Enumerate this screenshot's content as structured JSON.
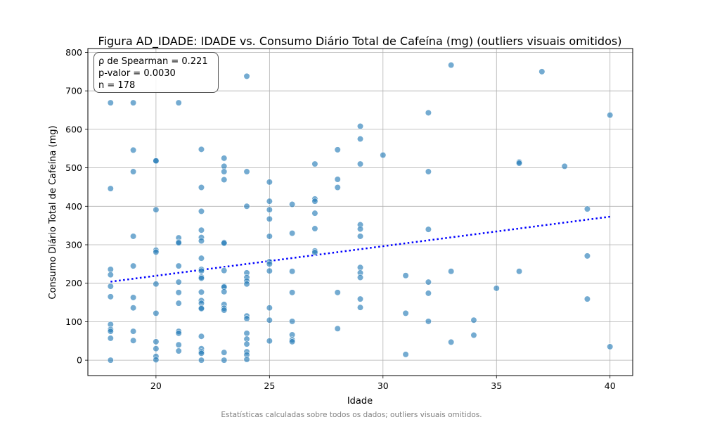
{
  "chart_data": {
    "type": "scatter",
    "title": "Figura AD_IDADE: IDADE vs. Consumo Diário Total de Cafeína (mg) (outliers visuais omitidos)",
    "xlabel": "Idade",
    "ylabel": "Consumo Diário Total de Cafeína (mg)",
    "xlim": [
      17,
      41
    ],
    "ylim": [
      -40,
      810
    ],
    "xticks": [
      20,
      25,
      30,
      35,
      40
    ],
    "yticks": [
      0,
      100,
      200,
      300,
      400,
      500,
      600,
      700,
      800
    ],
    "grid": true,
    "point_color": "#1f77b4",
    "trend_color": "#0000ff",
    "trend_line": {
      "x": [
        18,
        40
      ],
      "y": [
        204,
        373
      ]
    },
    "annotation": {
      "spearman": "ρ de Spearman = 0.221",
      "pvalue": "p-valor = 0.0030",
      "n": "n = 178"
    },
    "footnote": "Estatísticas calculadas sobre todos os dados; outliers visuais omitidos.",
    "points": [
      [
        18,
        669
      ],
      [
        18,
        446
      ],
      [
        18,
        236
      ],
      [
        18,
        222
      ],
      [
        18,
        192
      ],
      [
        18,
        165
      ],
      [
        18,
        93
      ],
      [
        18,
        80
      ],
      [
        18,
        75
      ],
      [
        18,
        57
      ],
      [
        18,
        0
      ],
      [
        19,
        669
      ],
      [
        19,
        546
      ],
      [
        19,
        490
      ],
      [
        19,
        322
      ],
      [
        19,
        245
      ],
      [
        19,
        163
      ],
      [
        19,
        136
      ],
      [
        19,
        75
      ],
      [
        19,
        51
      ],
      [
        20,
        519
      ],
      [
        20,
        518
      ],
      [
        20,
        391
      ],
      [
        20,
        286
      ],
      [
        20,
        281
      ],
      [
        20,
        198
      ],
      [
        20,
        122
      ],
      [
        20,
        48
      ],
      [
        20,
        30
      ],
      [
        20,
        10
      ],
      [
        20,
        1
      ],
      [
        21,
        669
      ],
      [
        21,
        318
      ],
      [
        21,
        307
      ],
      [
        21,
        305
      ],
      [
        21,
        245
      ],
      [
        21,
        203
      ],
      [
        21,
        176
      ],
      [
        21,
        148
      ],
      [
        21,
        75
      ],
      [
        21,
        70
      ],
      [
        21,
        40
      ],
      [
        21,
        24
      ],
      [
        22,
        548
      ],
      [
        22,
        449
      ],
      [
        22,
        387
      ],
      [
        22,
        338
      ],
      [
        22,
        319
      ],
      [
        22,
        310
      ],
      [
        22,
        265
      ],
      [
        22,
        236
      ],
      [
        22,
        232
      ],
      [
        22,
        216
      ],
      [
        22,
        213
      ],
      [
        22,
        177
      ],
      [
        22,
        155
      ],
      [
        22,
        148
      ],
      [
        22,
        136
      ],
      [
        22,
        134
      ],
      [
        22,
        62
      ],
      [
        22,
        30
      ],
      [
        22,
        22
      ],
      [
        22,
        18
      ],
      [
        22,
        0
      ],
      [
        23,
        525
      ],
      [
        23,
        504
      ],
      [
        23,
        490
      ],
      [
        23,
        469
      ],
      [
        23,
        306
      ],
      [
        23,
        304
      ],
      [
        23,
        233
      ],
      [
        23,
        192
      ],
      [
        23,
        190
      ],
      [
        23,
        178
      ],
      [
        23,
        145
      ],
      [
        23,
        135
      ],
      [
        23,
        130
      ],
      [
        23,
        20
      ],
      [
        23,
        0
      ],
      [
        24,
        738
      ],
      [
        24,
        490
      ],
      [
        24,
        400
      ],
      [
        24,
        227
      ],
      [
        24,
        215
      ],
      [
        24,
        206
      ],
      [
        24,
        198
      ],
      [
        24,
        115
      ],
      [
        24,
        108
      ],
      [
        24,
        70
      ],
      [
        24,
        55
      ],
      [
        24,
        42
      ],
      [
        24,
        22
      ],
      [
        24,
        14
      ],
      [
        24,
        2
      ],
      [
        25,
        463
      ],
      [
        25,
        413
      ],
      [
        25,
        391
      ],
      [
        25,
        367
      ],
      [
        25,
        322
      ],
      [
        25,
        256
      ],
      [
        25,
        250
      ],
      [
        25,
        232
      ],
      [
        25,
        136
      ],
      [
        25,
        104
      ],
      [
        25,
        50
      ],
      [
        26,
        405
      ],
      [
        26,
        330
      ],
      [
        26,
        231
      ],
      [
        26,
        176
      ],
      [
        26,
        101
      ],
      [
        26,
        66
      ],
      [
        26,
        53
      ],
      [
        26,
        48
      ],
      [
        27,
        510
      ],
      [
        27,
        419
      ],
      [
        27,
        413
      ],
      [
        27,
        382
      ],
      [
        27,
        342
      ],
      [
        27,
        284
      ],
      [
        27,
        280
      ],
      [
        28,
        547
      ],
      [
        28,
        470
      ],
      [
        28,
        449
      ],
      [
        28,
        176
      ],
      [
        28,
        82
      ],
      [
        29,
        608
      ],
      [
        29,
        575
      ],
      [
        29,
        510
      ],
      [
        29,
        352
      ],
      [
        29,
        341
      ],
      [
        29,
        322
      ],
      [
        29,
        241
      ],
      [
        29,
        227
      ],
      [
        29,
        215
      ],
      [
        29,
        159
      ],
      [
        29,
        137
      ],
      [
        30,
        533
      ],
      [
        31,
        220
      ],
      [
        31,
        122
      ],
      [
        31,
        15
      ],
      [
        32,
        643
      ],
      [
        32,
        490
      ],
      [
        32,
        340
      ],
      [
        32,
        203
      ],
      [
        32,
        174
      ],
      [
        32,
        101
      ],
      [
        33,
        767
      ],
      [
        33,
        231
      ],
      [
        33,
        47
      ],
      [
        34,
        104
      ],
      [
        34,
        65
      ],
      [
        35,
        187
      ],
      [
        36,
        515
      ],
      [
        36,
        512
      ],
      [
        36,
        231
      ],
      [
        37,
        750
      ],
      [
        38,
        504
      ],
      [
        39,
        393
      ],
      [
        39,
        271
      ],
      [
        39,
        159
      ],
      [
        40,
        637
      ],
      [
        40,
        35
      ]
    ]
  }
}
